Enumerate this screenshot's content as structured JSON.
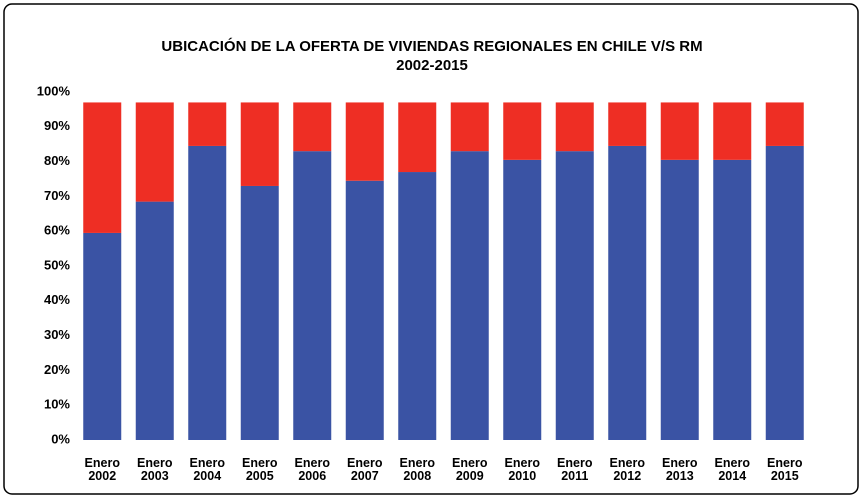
{
  "chart_data": {
    "type": "stacked_bar",
    "title": "UBICACIÓN DE LA OFERTA DE VIVIENDAS REGIONALES EN CHILE V/S RM",
    "subtitle": "2002-2015",
    "categories": [
      "Enero 2002",
      "Enero 2003",
      "Enero 2004",
      "Enero 2005",
      "Enero 2006",
      "Enero 2007",
      "Enero 2008",
      "Enero 2009",
      "Enero 2010",
      "Enero 2011",
      "Enero 2012",
      "Enero 2013",
      "Enero 2014",
      "Enero 2015"
    ],
    "series": [
      {
        "color": "#3a53a4",
        "values": [
          59.5,
          68.5,
          84.5,
          73,
          83,
          74.5,
          77,
          83,
          80.5,
          83,
          84.5,
          80.5,
          80.5,
          84.5
        ]
      },
      {
        "color": "#ee2e24",
        "values": [
          37.5,
          28.5,
          12.5,
          24,
          14,
          22.5,
          20,
          14,
          16.5,
          14,
          12.5,
          16.5,
          16.5,
          12.5
        ]
      }
    ],
    "ylim": [
      0,
      100
    ],
    "yticks": [
      {
        "value": 0,
        "label": "0%"
      },
      {
        "value": 10,
        "label": "10%"
      },
      {
        "value": 20,
        "label": "20%"
      },
      {
        "value": 30,
        "label": "30%"
      },
      {
        "value": 40,
        "label": "40%"
      },
      {
        "value": 50,
        "label": "50%"
      },
      {
        "value": 60,
        "label": "60%"
      },
      {
        "value": 70,
        "label": "70%"
      },
      {
        "value": 80,
        "label": "80%"
      },
      {
        "value": 90,
        "label": "90%"
      },
      {
        "value": 100,
        "label": "100%"
      }
    ],
    "grid": false
  }
}
